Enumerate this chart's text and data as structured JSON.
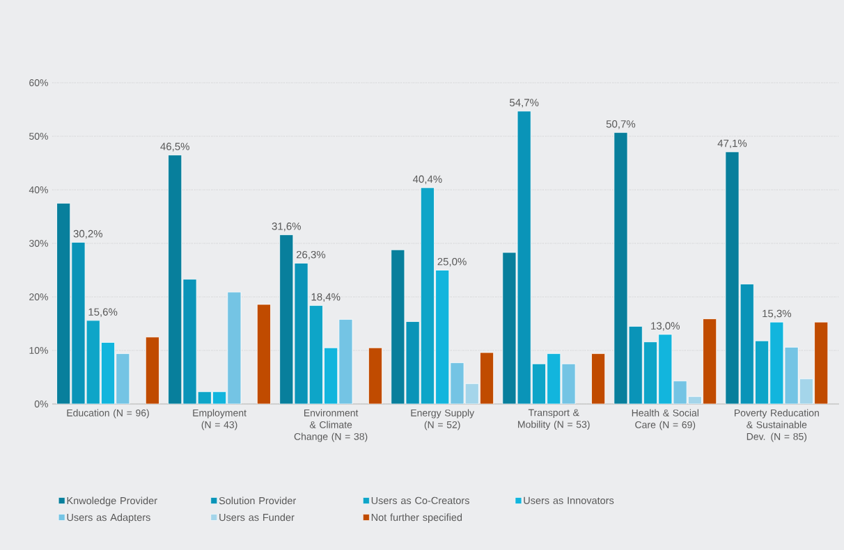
{
  "chart_data": {
    "type": "bar",
    "categories": [
      "Education (N = 96)",
      "Employment (N = 43)",
      "Environment & Climate Change (N = 38)",
      "Energy Supply (N = 52)",
      "Transport & Mobility (N = 53)",
      "Health & Social Care (N = 69)",
      "Poverty Reducation & Sustainable Dev. (N = 85)"
    ],
    "series": [
      {
        "name": "Knwoledge Provider",
        "color": "#087f9c",
        "values": [
          37.5,
          46.5,
          31.6,
          28.8,
          28.3,
          50.7,
          47.1
        ],
        "value_labels": [
          null,
          "46,5%",
          "31,6%",
          null,
          null,
          "50,7%",
          "47,1%"
        ]
      },
      {
        "name": "Solution Provider",
        "color": "#0a94b8",
        "values": [
          30.2,
          23.3,
          26.3,
          15.4,
          54.7,
          14.5,
          22.4
        ],
        "value_labels": [
          "30,2%",
          null,
          "26,3%",
          null,
          "54,7%",
          null,
          null
        ]
      },
      {
        "name": "Users as Co-Creators",
        "color": "#0ea5c8",
        "values": [
          15.6,
          2.3,
          18.4,
          40.4,
          7.5,
          11.6,
          11.8
        ],
        "value_labels": [
          "15,6%",
          null,
          "18,4%",
          "40,4%",
          null,
          null,
          null
        ]
      },
      {
        "name": "Users as Innovators",
        "color": "#12b5dd",
        "values": [
          11.5,
          2.3,
          10.5,
          25.0,
          9.4,
          13.0,
          15.3
        ],
        "value_labels": [
          null,
          null,
          null,
          "25,0%",
          null,
          "13,0%",
          "15,3%"
        ]
      },
      {
        "name": "Users as Adapters",
        "color": "#74c4e4",
        "values": [
          9.4,
          20.9,
          15.8,
          7.7,
          7.5,
          4.3,
          10.6
        ]
      },
      {
        "name": "Users as Funder",
        "color": "#a4d5ea",
        "values": [
          null,
          null,
          null,
          3.8,
          null,
          1.4,
          4.7
        ]
      },
      {
        "name": "Not further specified",
        "color": "#c04b00",
        "values": [
          12.5,
          18.6,
          10.5,
          9.6,
          9.4,
          15.9,
          15.3
        ]
      }
    ],
    "ylim": [
      0,
      60
    ],
    "yticks": [
      {
        "value": 0,
        "label": "0%"
      },
      {
        "value": 10,
        "label": "10%"
      },
      {
        "value": 20,
        "label": "20%"
      },
      {
        "value": 30,
        "label": "30%"
      },
      {
        "value": 40,
        "label": "40%"
      },
      {
        "value": 50,
        "label": "50%"
      },
      {
        "value": 60,
        "label": "60%"
      }
    ],
    "grid": "y",
    "legend": "bottom"
  }
}
